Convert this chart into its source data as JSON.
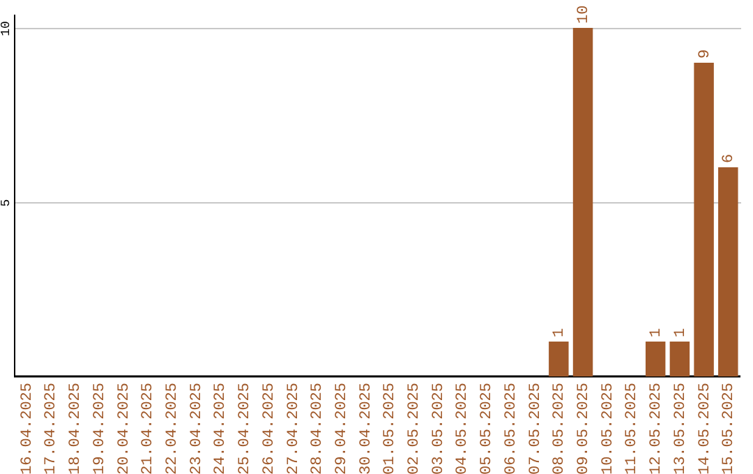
{
  "chart_data": {
    "type": "bar",
    "categories": [
      "16.04.2025",
      "17.04.2025",
      "18.04.2025",
      "19.04.2025",
      "20.04.2025",
      "21.04.2025",
      "22.04.2025",
      "23.04.2025",
      "24.04.2025",
      "25.04.2025",
      "26.04.2025",
      "27.04.2025",
      "28.04.2025",
      "29.04.2025",
      "30.04.2025",
      "01.05.2025",
      "02.05.2025",
      "03.05.2025",
      "04.05.2025",
      "05.05.2025",
      "06.05.2025",
      "07.05.2025",
      "08.05.2025",
      "09.05.2025",
      "10.05.2025",
      "11.05.2025",
      "12.05.2025",
      "13.05.2025",
      "14.05.2025",
      "15.05.2025"
    ],
    "values": [
      0,
      0,
      0,
      0,
      0,
      0,
      0,
      0,
      0,
      0,
      0,
      0,
      0,
      0,
      0,
      0,
      0,
      0,
      0,
      0,
      0,
      0,
      1,
      10,
      0,
      0,
      1,
      1,
      9,
      6
    ],
    "value_labels": [
      null,
      null,
      null,
      null,
      null,
      null,
      null,
      null,
      null,
      null,
      null,
      null,
      null,
      null,
      null,
      null,
      null,
      null,
      null,
      null,
      null,
      null,
      "1",
      "10",
      null,
      null,
      "1",
      "1",
      "9",
      "6"
    ],
    "color": "#a0592a",
    "ylim": [
      0,
      10.4
    ],
    "yticks": [
      5,
      10
    ],
    "grid": "y"
  }
}
